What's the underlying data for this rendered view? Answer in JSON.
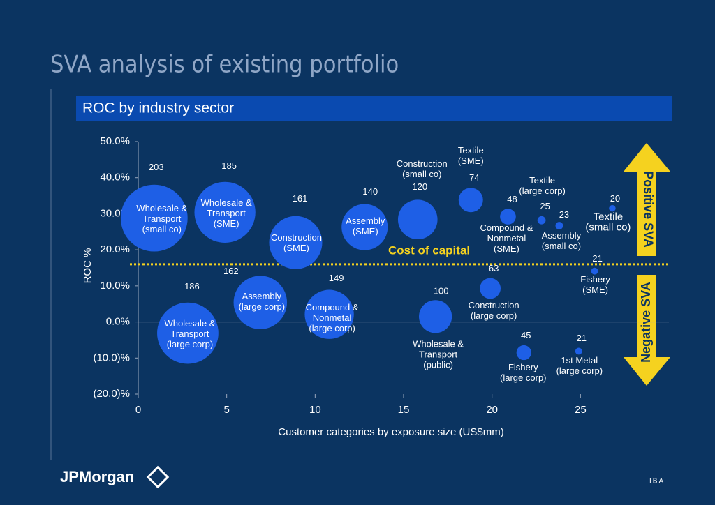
{
  "page_title": "SVA analysis of existing portfolio",
  "chart_data": {
    "type": "bubble",
    "title": "ROC by industry sector",
    "xlabel": "Customer categories by exposure size (US$mm)",
    "ylabel": "ROC %",
    "xlim": [
      0,
      30
    ],
    "ylim": [
      -20,
      50
    ],
    "xticks": [
      0,
      5,
      10,
      15,
      20,
      25
    ],
    "yticks": [
      {
        "value": -20,
        "label": "(20.0)%"
      },
      {
        "value": -10,
        "label": "(10.0)%"
      },
      {
        "value": 0,
        "label": "0.0%"
      },
      {
        "value": 10,
        "label": "10.0%"
      },
      {
        "value": 20,
        "label": "20.0%"
      },
      {
        "value": 30,
        "label": "30.0%"
      },
      {
        "value": 40,
        "label": "40.0%"
      },
      {
        "value": 50,
        "label": "50.0%"
      }
    ],
    "color": "#1e5fe6",
    "points": [
      {
        "label": [
          "Wholesale &",
          "Transport",
          "(small co)"
        ],
        "x": 0.9,
        "y": 28.8,
        "size": 203
      },
      {
        "label": [
          "Wholesale &",
          "Transport",
          "(SME)"
        ],
        "x": 4.9,
        "y": 30.4,
        "size": 185
      },
      {
        "label": [
          "Construction",
          "(SME)"
        ],
        "x": 8.9,
        "y": 22.0,
        "size": 161
      },
      {
        "label": [
          "Assembly",
          "(SME)"
        ],
        "x": 12.8,
        "y": 26.3,
        "size": 140
      },
      {
        "label": [
          "Construction",
          "(small co)"
        ],
        "x": 15.8,
        "y": 28.4,
        "size": 120
      },
      {
        "label": [
          "Textile",
          "(SME)"
        ],
        "x": 18.8,
        "y": 33.8,
        "size": 74
      },
      {
        "label": [
          "Compound &",
          "Nonmetal",
          "(SME)"
        ],
        "x": 20.9,
        "y": 29.2,
        "size": 48
      },
      {
        "label": [
          "Textile",
          "(large corp)"
        ],
        "x": 22.8,
        "y": 28.2,
        "size": 25
      },
      {
        "label": [
          "Assembly",
          "(small co)"
        ],
        "x": 23.8,
        "y": 26.7,
        "size": 23
      },
      {
        "label": [
          "Textile",
          "(small co)"
        ],
        "x": 26.8,
        "y": 31.5,
        "size": 20
      },
      {
        "label": [
          "Fishery",
          "(SME)"
        ],
        "x": 25.8,
        "y": 14.1,
        "size": 21
      },
      {
        "label": [
          "Wholesale &",
          "Transport",
          "(large corp)"
        ],
        "x": 2.8,
        "y": -3.1,
        "size": 186
      },
      {
        "label": [
          "Assembly",
          "(large corp)"
        ],
        "x": 6.9,
        "y": 5.4,
        "size": 162
      },
      {
        "label": [
          "Compound &",
          "Nonmetal",
          "(large corp)"
        ],
        "x": 10.8,
        "y": 2.1,
        "size": 149
      },
      {
        "label": [
          "Wholesale &",
          "Transport",
          "(public)"
        ],
        "x": 16.8,
        "y": 1.5,
        "size": 100
      },
      {
        "label": [
          "Construction",
          "(large corp)"
        ],
        "x": 19.9,
        "y": 9.3,
        "size": 63
      },
      {
        "label": [
          "Fishery",
          "(large corp)"
        ],
        "x": 21.8,
        "y": -8.5,
        "size": 45
      },
      {
        "label": [
          "1st Metal",
          "(large corp)"
        ],
        "x": 24.9,
        "y": -8.1,
        "size": 21
      }
    ],
    "reference_line": {
      "value": 16,
      "label": "Cost of capital",
      "color": "#f5d21f"
    },
    "annotations": [
      "Positive SVA",
      "Negative SVA"
    ]
  },
  "footer": {
    "logo": "JPMorgan",
    "code": "IBA"
  }
}
